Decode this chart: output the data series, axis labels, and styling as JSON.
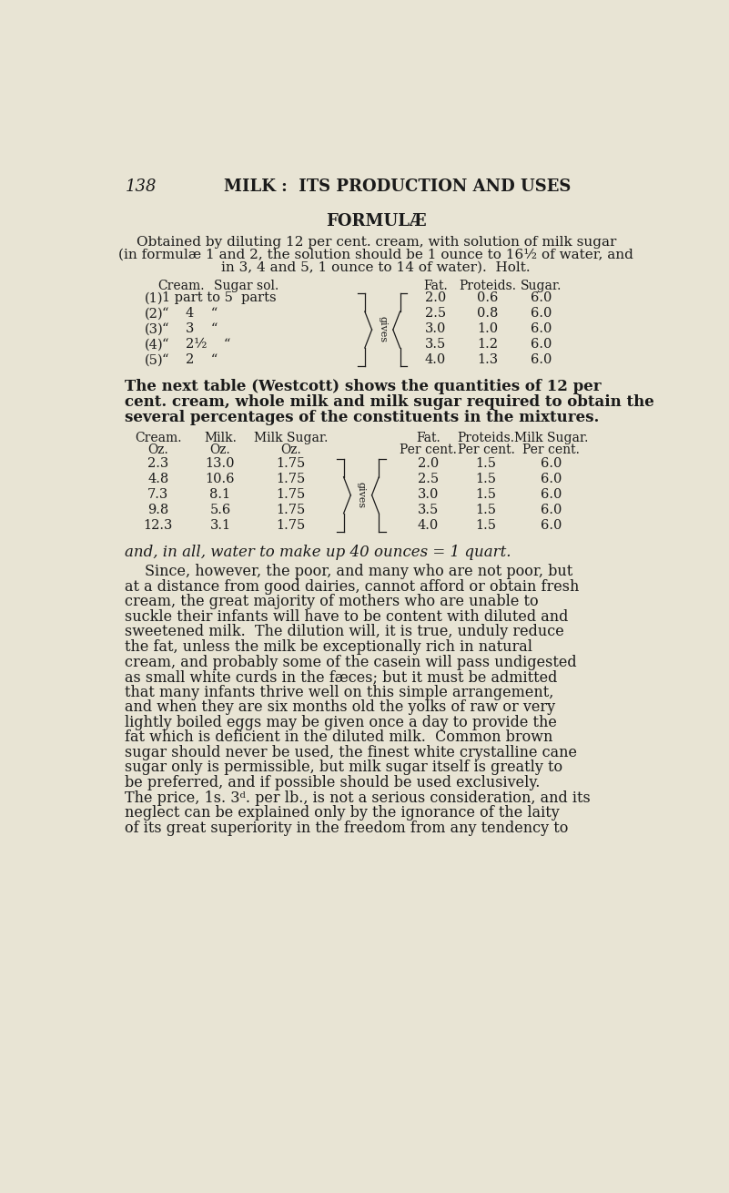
{
  "bg_color": "#e8e4d4",
  "text_color": "#1a1a1a",
  "page_number": "138",
  "chapter_title": "MILK :  ITS PRODUCTION AND USES",
  "section_title": "FORMULÆ",
  "intro_lines": [
    "Obtained by diluting 12 per cent. cream, with solution of milk sugar",
    "(in formulæ 1 and 2, the solution should be 1 ounce to 16½ of water, and",
    "in 3, 4 and 5, 1 ounce to 14 of water).  Holt."
  ],
  "table1_col_headers": [
    "Cream.",
    "Sugar sol.",
    "Fat.",
    "Proteids.",
    "Sugar."
  ],
  "table1_rows": [
    [
      "(1)",
      "1 part to 5  parts",
      "2.0",
      "0.6",
      "6.0"
    ],
    [
      "(2)",
      "“    4    “",
      "2.5",
      "0.8",
      "6.0"
    ],
    [
      "(3)",
      "“    3    “",
      "3.0",
      "1.0",
      "6.0"
    ],
    [
      "(4)",
      "“    2½    “",
      "3.5",
      "1.2",
      "6.0"
    ],
    [
      "(5)",
      "“    2    “",
      "4.0",
      "1.3",
      "6.0"
    ]
  ],
  "between_lines": [
    "The next table (Westcott) shows the quantities of 12 per",
    "cent. cream, whole milk and milk sugar required to obtain the",
    "several percentages of the constituents in the mixtures."
  ],
  "table2_headers_line1": [
    "Cream.",
    "Milk.",
    "Milk Sugar.",
    "Fat.",
    "Proteids.",
    "Milk Sugar."
  ],
  "table2_headers_line2": [
    "Oz.",
    "Oz.",
    "Oz.",
    "Per cent.",
    "Per cent.",
    "Per cent."
  ],
  "table2_rows": [
    [
      "2.3",
      "13.0",
      "1.75",
      "2.0",
      "1.5",
      "6.0"
    ],
    [
      "4.8",
      "10.6",
      "1.75",
      "2.5",
      "1.5",
      "6.0"
    ],
    [
      "7.3",
      "8.1",
      "1.75",
      "3.0",
      "1.5",
      "6.0"
    ],
    [
      "9.8",
      "5.6",
      "1.75",
      "3.5",
      "1.5",
      "6.0"
    ],
    [
      "12.3",
      "3.1",
      "1.75",
      "4.0",
      "1.5",
      "6.0"
    ]
  ],
  "after_table_text": "and, in all, water to make up 40 ounces = 1 quart.",
  "body_lines": [
    "Since, however, the poor, and many who are not poor, but",
    "at a distance from good dairies, cannot afford or obtain fresh",
    "cream, the great majority of mothers who are unable to",
    "suckle their infants will have to be content with diluted and",
    "sweetened milk.  The dilution will, it is true, unduly reduce",
    "the fat, unless the milk be exceptionally rich in natural",
    "cream, and probably some of the casein will pass undigested",
    "as small white curds in the fæces; but it must be admitted",
    "that many infants thrive well on this simple arrangement,",
    "and when they are six months old the yolks of raw or very",
    "lightly boiled eggs may be given once a day to provide the",
    "fat which is deficient in the diluted milk.  Common brown",
    "sugar should never be used, the finest white crystalline cane",
    "sugar only is permissible, but milk sugar itself is greatly to",
    "be preferred, and if possible should be used exclusively.",
    "The price, 1s. 3ᵈ. per lb., is not a serious consideration, and its",
    "neglect can be explained only by the ignorance of the laity",
    "of its great superiority in the freedom from any tendency to"
  ]
}
